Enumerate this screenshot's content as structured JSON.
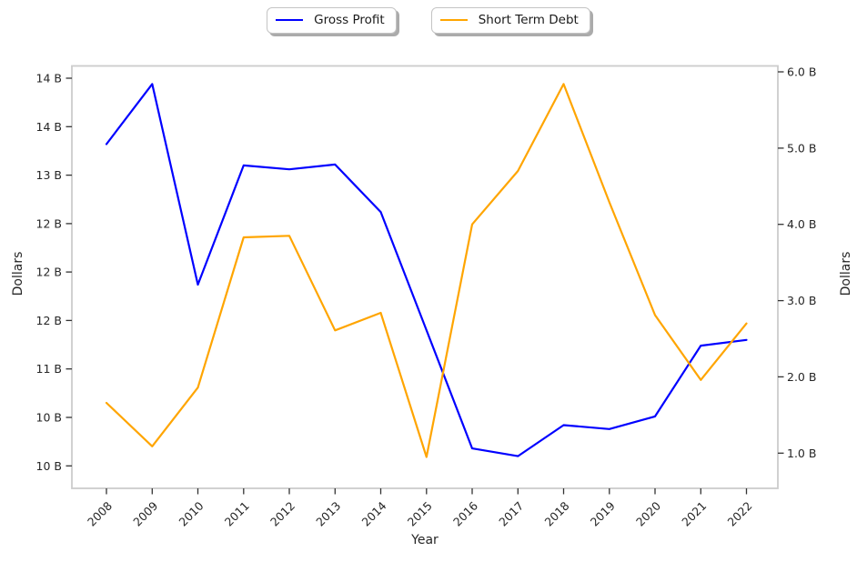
{
  "legend": {
    "items": [
      {
        "label": "Gross Profit",
        "color": "#0000ff",
        "swatch": "line"
      },
      {
        "label": "Short Term Debt",
        "color": "#ffa500",
        "swatch": "line"
      }
    ]
  },
  "axes": {
    "x": {
      "label": "Year",
      "tick_labels": [
        "2008",
        "2009",
        "2010",
        "2011",
        "2012",
        "2013",
        "2014",
        "2015",
        "2016",
        "2017",
        "2018",
        "2019",
        "2020",
        "2021",
        "2022"
      ]
    },
    "y_left": {
      "label": "Dollars",
      "ticks": [
        {
          "value": 14.0,
          "label": "14 B"
        },
        {
          "value": 13.5,
          "label": "14 B"
        },
        {
          "value": 13.0,
          "label": "13 B"
        },
        {
          "value": 12.5,
          "label": "12 B"
        },
        {
          "value": 12.0,
          "label": "12 B"
        },
        {
          "value": 11.5,
          "label": "12 B"
        },
        {
          "value": 11.0,
          "label": "11 B"
        },
        {
          "value": 10.5,
          "label": "10 B"
        },
        {
          "value": 10.0,
          "label": "10 B"
        }
      ]
    },
    "y_right": {
      "label": "Dollars",
      "ticks": [
        {
          "value": 6.0,
          "label": "6.0 B"
        },
        {
          "value": 5.0,
          "label": "5.0 B"
        },
        {
          "value": 4.0,
          "label": "4.0 B"
        },
        {
          "value": 3.0,
          "label": "3.0 B"
        },
        {
          "value": 2.0,
          "label": "2.0 B"
        },
        {
          "value": 1.0,
          "label": "1.0 B"
        }
      ]
    }
  },
  "chart_data": {
    "type": "line",
    "title": "",
    "xlabel": "Year",
    "x": [
      2008,
      2009,
      2010,
      2011,
      2012,
      2013,
      2014,
      2015,
      2016,
      2017,
      2018,
      2019,
      2020,
      2021,
      2022
    ],
    "series": [
      {
        "name": "Gross Profit",
        "axis": "left",
        "color": "#0000ff",
        "units": "billions of dollars",
        "values": [
          13.32,
          13.94,
          11.87,
          13.1,
          13.06,
          13.11,
          12.62,
          11.4,
          10.18,
          10.1,
          10.42,
          10.38,
          10.51,
          11.24,
          11.3
        ]
      },
      {
        "name": "Short Term Debt",
        "axis": "right",
        "color": "#ffa500",
        "units": "billions of dollars",
        "values": [
          1.66,
          1.09,
          1.86,
          3.83,
          3.85,
          2.61,
          2.84,
          0.95,
          4.0,
          4.7,
          5.84,
          4.29,
          2.81,
          1.96,
          2.7
        ]
      }
    ],
    "ylabel_left": "Dollars",
    "ylabel_right": "Dollars",
    "ytick_range_left": [
      10.0,
      14.0
    ],
    "ytick_step_left": 0.5,
    "ytick_range_right": [
      1.0,
      6.0
    ],
    "ytick_step_right": 1.0,
    "grid": false,
    "legend_position": "top-center",
    "x_tick_rotation_deg": 45
  }
}
